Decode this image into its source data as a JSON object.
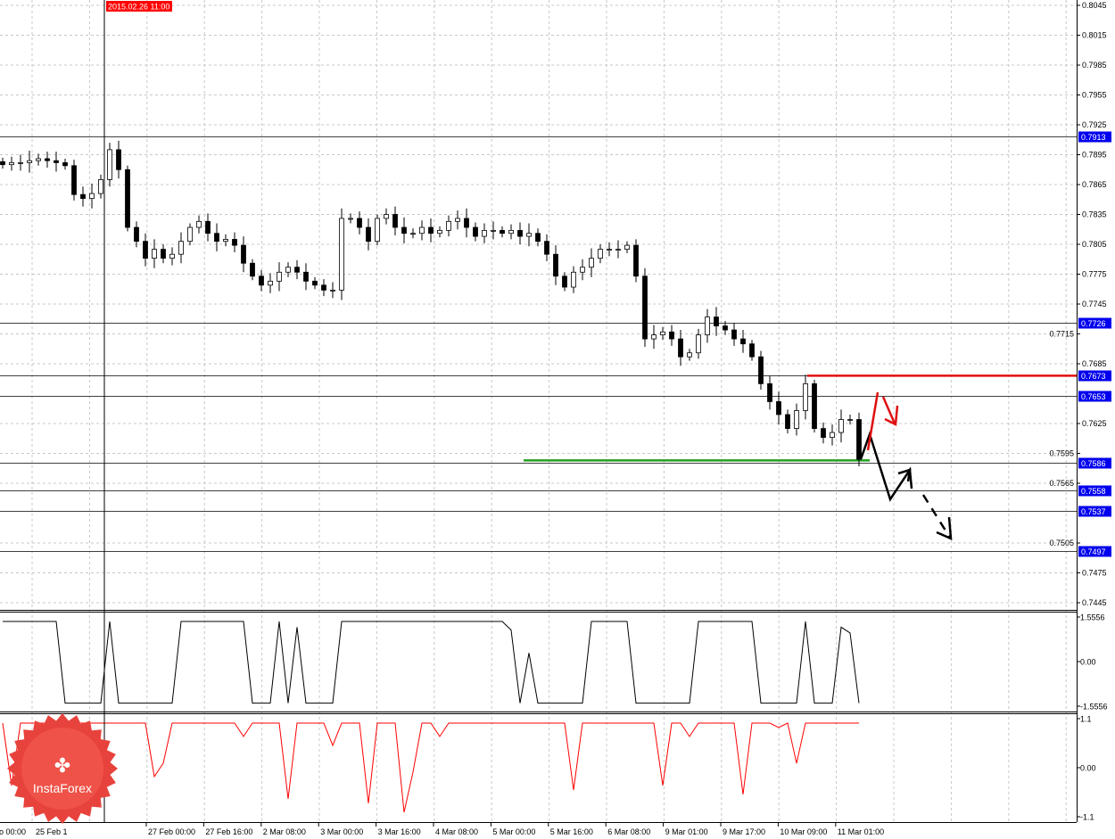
{
  "chart_data": {
    "type": "candlestick",
    "colors": {
      "background": "#ffffff",
      "candle": "#000000",
      "level_line": "#000000",
      "level_label_bg": "#0000ee",
      "resistance": "#e01010",
      "support": "#22a022",
      "osc2": "#ff0000",
      "crosshair_label_bg": "#ff0000"
    },
    "price_axis": {
      "min": 0.7445,
      "max": 0.8045,
      "ticks": [
        "0.8045",
        "0.8015",
        "0.7985",
        "0.7955",
        "0.7925",
        "0.7895",
        "0.7865",
        "0.7835",
        "0.7805",
        "0.7775",
        "0.7745",
        "0.7715",
        "0.7685",
        "0.7625",
        "0.7595",
        "0.7565",
        "0.7505",
        "0.7475",
        "0.7445"
      ]
    },
    "closes": [
      0.7885,
      0.7887,
      0.7887,
      0.7889,
      0.7891,
      0.7889,
      0.7887,
      0.7884,
      0.7855,
      0.7851,
      0.7856,
      0.787,
      0.79,
      0.788,
      0.7822,
      0.7808,
      0.7791,
      0.78,
      0.7791,
      0.7795,
      0.7808,
      0.7822,
      0.7828,
      0.7816,
      0.7808,
      0.781,
      0.7804,
      0.7786,
      0.7773,
      0.7764,
      0.7768,
      0.7777,
      0.7782,
      0.7777,
      0.7768,
      0.7764,
      0.7759,
      0.7759,
      0.7831,
      0.7831,
      0.7822,
      0.7808,
      0.7831,
      0.7835,
      0.7822,
      0.7816,
      0.7816,
      0.7822,
      0.7816,
      0.7819,
      0.7828,
      0.7831,
      0.7822,
      0.7813,
      0.7819,
      0.7819,
      0.7816,
      0.7819,
      0.7813,
      0.7816,
      0.7808,
      0.7795,
      0.7773,
      0.7762,
      0.7777,
      0.7782,
      0.7791,
      0.78,
      0.78,
      0.78,
      0.7804,
      0.7773,
      0.771,
      0.7714,
      0.7717,
      0.771,
      0.7692,
      0.7696,
      0.7714,
      0.7732,
      0.7723,
      0.7719,
      0.771,
      0.7705,
      0.7692,
      0.7665,
      0.7647,
      0.7634,
      0.762,
      0.7638,
      0.7665,
      0.762,
      0.7611,
      0.7616,
      0.7629,
      0.7629,
      0.7589
    ],
    "levels": [
      {
        "price": 0.7913,
        "label": "0.7913"
      },
      {
        "price": 0.7726,
        "label": "0.7726"
      },
      {
        "price": 0.7673,
        "label": "0.7673"
      },
      {
        "price": 0.7653,
        "label": "0.7653"
      },
      {
        "price": 0.7586,
        "label": "0.7586"
      },
      {
        "price": 0.7558,
        "label": "0.7558"
      },
      {
        "price": 0.7537,
        "label": "0.7537"
      },
      {
        "price": 0.7497,
        "label": "0.7497"
      }
    ],
    "resistance_line": {
      "price": 0.7673
    },
    "support_line": {
      "price": 0.7588
    },
    "indicator1": {
      "min": -1.5556,
      "max": 1.5556,
      "ticks": [
        "1.5556",
        "0.00",
        "-1.5556"
      ],
      "values": [
        1.4,
        1.4,
        1.4,
        1.4,
        1.4,
        1.4,
        1.4,
        -1.45,
        -1.45,
        -1.45,
        -1.45,
        -1.45,
        1.4,
        -1.45,
        -1.45,
        -1.45,
        -1.45,
        -1.45,
        -1.45,
        -1.45,
        1.4,
        1.4,
        1.4,
        1.4,
        1.4,
        1.4,
        1.4,
        1.4,
        -1.45,
        -1.45,
        -1.45,
        1.4,
        -1.45,
        1.2,
        -1.45,
        -1.45,
        -1.45,
        -1.45,
        1.4,
        1.4,
        1.4,
        1.4,
        1.4,
        1.4,
        1.4,
        1.4,
        1.4,
        1.4,
        1.4,
        1.4,
        1.4,
        1.4,
        1.4,
        1.4,
        1.4,
        1.4,
        1.4,
        1.1,
        -1.45,
        0.3,
        -1.45,
        -1.45,
        -1.45,
        -1.45,
        -1.45,
        -1.45,
        1.4,
        1.4,
        1.4,
        1.4,
        1.4,
        -1.45,
        -1.45,
        -1.45,
        -1.45,
        -1.45,
        -1.45,
        -1.45,
        1.4,
        1.4,
        1.4,
        1.4,
        1.4,
        1.4,
        1.4,
        -1.45,
        -1.45,
        -1.45,
        -1.45,
        -1.45,
        1.4,
        -1.45,
        -1.45,
        -1.45,
        1.2,
        1.0,
        -1.45
      ]
    },
    "indicator2": {
      "min": -1.1,
      "max": 1.1,
      "ticks": [
        "1.1",
        "0.00",
        "-1.1"
      ],
      "values": [
        1,
        -0.4,
        1,
        1,
        1,
        1,
        1,
        1,
        1,
        1,
        1,
        1,
        1,
        1,
        1,
        1,
        1,
        -0.2,
        0.1,
        1,
        1,
        1,
        1,
        1,
        1,
        1,
        1,
        0.7,
        1,
        1,
        1,
        1,
        -0.7,
        1,
        1,
        1,
        1,
        0.5,
        1,
        1,
        1,
        -0.8,
        1,
        1,
        1,
        -1.0,
        -0.1,
        1,
        1,
        0.7,
        1,
        1,
        1,
        1,
        1,
        1,
        1,
        1,
        1,
        1,
        1,
        1,
        1,
        1,
        -0.5,
        1,
        1,
        1,
        1,
        1,
        1,
        1,
        1,
        1,
        -0.4,
        1,
        1,
        0.7,
        1,
        1,
        1,
        1,
        1,
        -0.6,
        1,
        1,
        1,
        0.9,
        1,
        0.1,
        1,
        1,
        1,
        1,
        1,
        1,
        1
      ]
    },
    "time_labels": [
      "o 00:00",
      "25 Feb 1",
      "27 Feb 00:00",
      "27 Feb 16:00",
      "2 Mar 08:00",
      "3 Mar 00:00",
      "3 Mar 16:00",
      "4 Mar 08:00",
      "5 Mar 00:00",
      "5 Mar 16:00",
      "6 Mar 08:00",
      "9 Mar 01:00",
      "9 Mar 17:00",
      "10 Mar 09:00",
      "11 Mar 01:00"
    ],
    "crosshair_time": "2015.02.26 11:00"
  },
  "logo": {
    "text": "InstaForex"
  }
}
